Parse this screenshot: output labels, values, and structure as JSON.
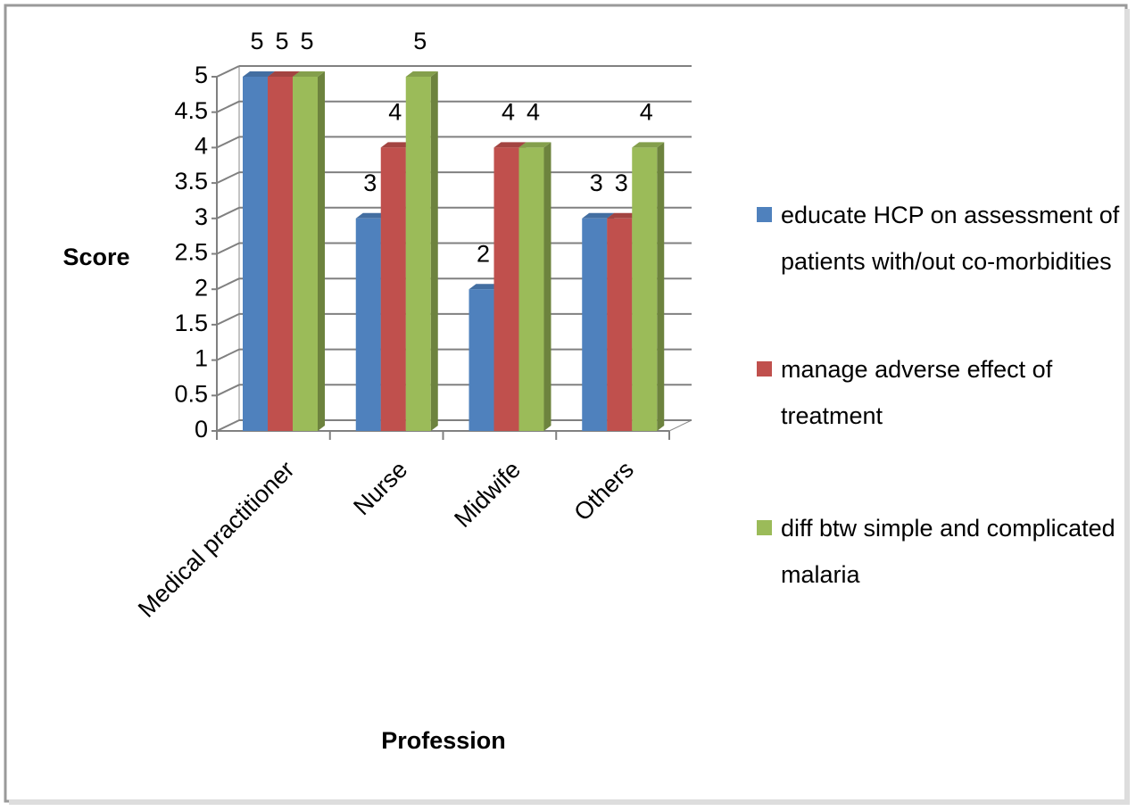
{
  "chart_data": {
    "type": "bar3d",
    "categories": [
      "Medical practitioner",
      "Nurse",
      "Midwife",
      "Others"
    ],
    "series": [
      {
        "name": "educate HCP on assessment of patients with/out co-morbidities",
        "color": "#4f81bd",
        "values": [
          5,
          3,
          2,
          3
        ]
      },
      {
        "name": "manage adverse effect of treatment",
        "color": "#c0504d",
        "values": [
          5,
          4,
          4,
          3
        ]
      },
      {
        "name": "diff btw simple and complicated malaria",
        "color": "#9bbb59",
        "values": [
          5,
          5,
          4,
          4
        ]
      }
    ],
    "ylim": [
      0,
      5
    ],
    "yticks": [
      0,
      0.5,
      1,
      1.5,
      2,
      2.5,
      3,
      3.5,
      4,
      4.5,
      5
    ],
    "y_label": "Score",
    "x_label": "Profession",
    "grid": true,
    "legend": "right"
  }
}
